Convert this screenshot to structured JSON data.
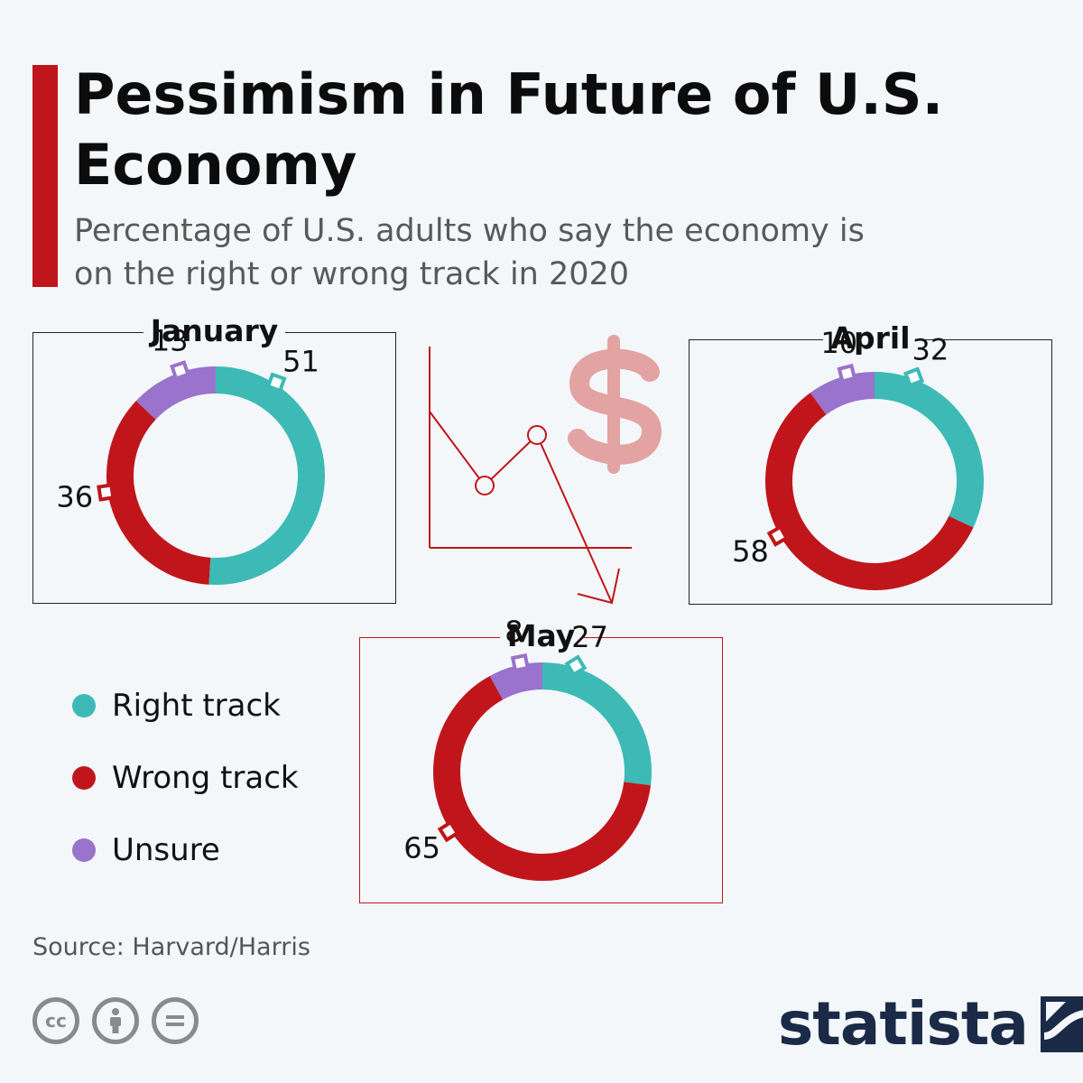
{
  "title": "Pessimism in Future of U.S. Economy",
  "subtitle": "Percentage of U.S. adults who say the economy is on the right or wrong track in 2020",
  "colors": {
    "right": "#3dbab5",
    "wrong": "#c0161b",
    "unsure": "#9a73cc",
    "accent": "#c0161b"
  },
  "chart_data": [
    {
      "type": "pie",
      "title": "January",
      "categories": [
        "Right track",
        "Wrong track",
        "Unsure"
      ],
      "values": [
        51,
        36,
        13
      ]
    },
    {
      "type": "pie",
      "title": "April",
      "categories": [
        "Right track",
        "Wrong track",
        "Unsure"
      ],
      "values": [
        32,
        58,
        10
      ]
    },
    {
      "type": "pie",
      "title": "May",
      "categories": [
        "Right track",
        "Wrong track",
        "Unsure"
      ],
      "values": [
        27,
        65,
        8
      ]
    }
  ],
  "legend": [
    {
      "label": "Right track",
      "color": "#3dbab5"
    },
    {
      "label": "Wrong track",
      "color": "#c0161b"
    },
    {
      "label": "Unsure",
      "color": "#9a73cc"
    }
  ],
  "source": "Source: Harvard/Harris",
  "icons": [
    "cc-icon",
    "attribution-icon",
    "no-derivatives-icon",
    "dollar-icon",
    "declining-line-icon"
  ],
  "logo": {
    "text": "statista"
  }
}
